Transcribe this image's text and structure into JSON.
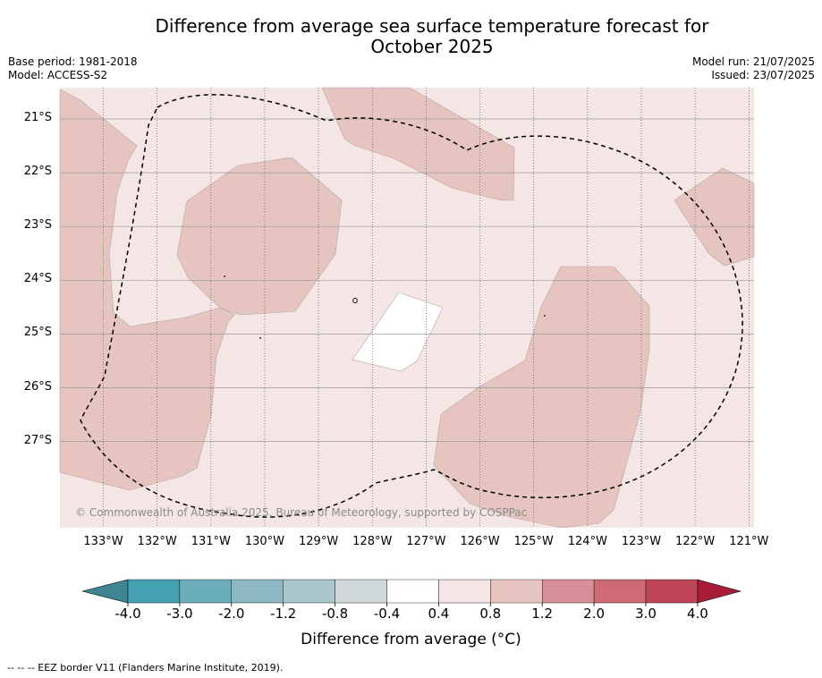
{
  "title_line1": "Difference from average sea surface temperature forecast for",
  "title_line2": "October 2025",
  "meta_left": {
    "base_period": "Base period: 1981-2018",
    "model": "Model: ACCESS-S2"
  },
  "meta_right": {
    "model_run": "Model run: 21/07/2025",
    "issued": "Issued: 23/07/2025"
  },
  "copyright": "© Commonwealth of Australia 2025, Bureau of Meteorology, supported by COSPPac",
  "lat_labels": [
    "21°S",
    "22°S",
    "23°S",
    "24°S",
    "25°S",
    "26°S",
    "27°S"
  ],
  "lon_labels": [
    "133°W",
    "132°W",
    "131°W",
    "130°W",
    "129°W",
    "128°W",
    "127°W",
    "126°W",
    "125°W",
    "124°W",
    "123°W",
    "122°W",
    "121°W"
  ],
  "colorbar": {
    "title": "Difference from average (°C)",
    "ticks": [
      "-4.0",
      "-3.0",
      "-2.0",
      "-1.2",
      "-0.8",
      "-0.4",
      "0.4",
      "0.8",
      "1.2",
      "2.0",
      "3.0",
      "4.0"
    ],
    "colors": [
      "#43a1b2",
      "#6badbb",
      "#8bb8c3",
      "#a8c7cc",
      "#d0d8da",
      "#ffffff",
      "#f4e6e5",
      "#e6c5c0",
      "#d78f98",
      "#cd6a73",
      "#be4556"
    ],
    "low_extend_color": "#3e8591",
    "high_extend_color": "#a81c38"
  },
  "map_colors": {
    "background": "#f4e6e5",
    "warm_patch": "#e6c5c0",
    "neutral_patch": "#ffffff"
  },
  "footnote": "-- -- -- EEZ border V11 (Flanders Marine Institute, 2019)."
}
